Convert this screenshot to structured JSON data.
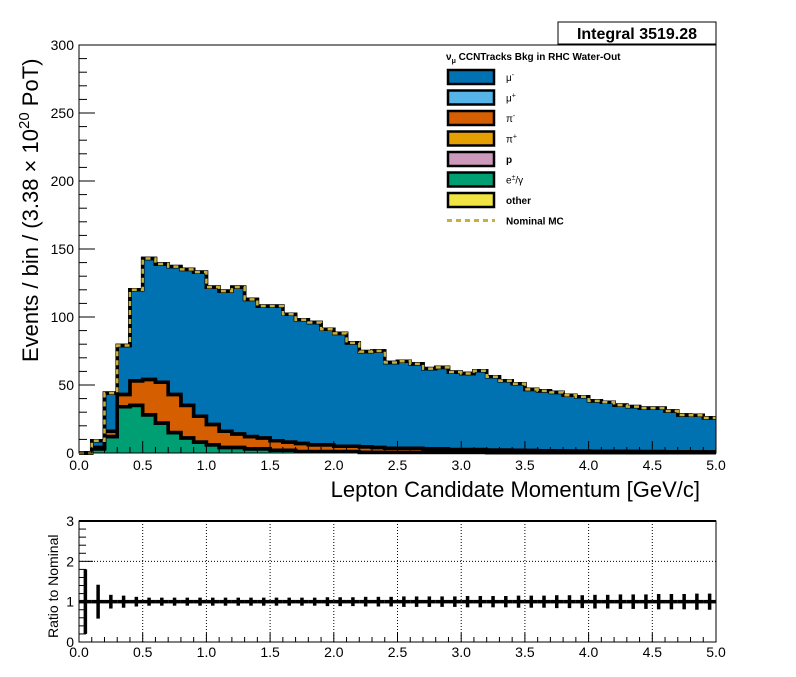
{
  "stats_box": {
    "label": "Integral 3519.28"
  },
  "chart_data": [
    {
      "type": "area",
      "title": "ν_μ CCNTracks Bkg in RHC Water-Out",
      "xlabel": "Lepton Candidate Momentum [GeV/c]",
      "ylabel": "Events / bin / (3.38  × 10^20  PoT)",
      "ylabel_parts": {
        "main": "Events / bin / (3.38  × 10",
        "exp": "20",
        "tail": "  PoT)"
      },
      "xlim": [
        0,
        5
      ],
      "ylim": [
        0,
        300
      ],
      "xticks": [
        "0.0",
        "0.5",
        "1.0",
        "1.5",
        "2.0",
        "2.5",
        "3.0",
        "3.5",
        "4.0",
        "4.5",
        "5.0"
      ],
      "yticks": [
        "0",
        "50",
        "100",
        "150",
        "200",
        "250",
        "300"
      ],
      "bin_width": 0.1,
      "stacked": true,
      "legend_position": "top-right",
      "series": [
        {
          "name": "e±/γ",
          "color": "#009e73",
          "values": [
            0,
            3,
            12,
            34,
            35,
            28,
            22,
            15,
            11,
            8,
            6,
            4,
            4,
            3,
            3,
            2,
            2,
            1,
            1,
            1,
            1,
            1,
            0.5,
            0.5,
            0.5,
            0.5,
            0.5,
            0.5,
            0.5,
            0.5,
            0.5,
            0.5,
            0.3,
            0.3,
            0.3,
            0.3,
            0.3,
            0.3,
            0.3,
            0.3,
            0.3,
            0.3,
            0.3,
            0.2,
            0.2,
            0.2,
            0.2,
            0.2,
            0.2,
            0.2
          ]
        },
        {
          "name": "π+",
          "color": "#e69f00",
          "values": [
            0,
            0,
            0,
            0,
            0,
            0,
            0,
            0,
            0,
            0,
            0,
            0,
            0,
            0,
            0,
            0,
            0,
            0,
            0,
            0,
            0,
            0,
            0,
            0,
            0,
            0,
            0,
            0,
            0,
            0,
            0,
            0,
            0,
            0,
            0,
            0,
            0,
            0,
            0,
            0,
            0,
            0,
            0,
            0,
            0,
            0,
            0,
            0,
            0,
            0
          ]
        },
        {
          "name": "π-",
          "color": "#d55e00",
          "values": [
            0,
            1,
            4,
            9,
            18,
            26,
            30,
            28,
            24,
            19,
            15,
            12,
            10,
            9,
            8,
            7,
            6,
            6,
            5,
            5,
            4,
            4,
            4,
            3.5,
            3,
            3,
            3,
            2.5,
            2.5,
            2,
            2,
            2,
            1.8,
            1.8,
            1.6,
            1.5,
            1.4,
            1.3,
            1.2,
            1.1,
            1,
            1,
            0.9,
            0.9,
            0.8,
            0.8,
            0.7,
            0.7,
            0.6,
            0.6
          ]
        },
        {
          "name": "μ+",
          "color": "#56b4e9",
          "values": [
            0,
            0,
            0,
            0,
            0,
            0,
            0,
            0,
            0,
            0,
            0,
            0,
            0,
            0,
            0,
            0,
            0,
            0,
            0,
            0,
            0,
            0,
            0,
            0,
            0,
            0,
            0,
            0,
            0,
            0,
            0,
            0,
            0,
            0,
            0,
            0,
            0,
            0,
            0,
            0,
            0,
            0,
            0,
            0,
            0,
            0,
            0,
            0,
            0,
            0
          ]
        },
        {
          "name": "μ-",
          "color": "#0072b2",
          "values": [
            0,
            5,
            28,
            36,
            67,
            89,
            87,
            94,
            100,
            106,
            101,
            103,
            108,
            101,
            97,
            99,
            94,
            91,
            90,
            85,
            83,
            76,
            70,
            71,
            63,
            64,
            62,
            59,
            60,
            57,
            56,
            58,
            54,
            51,
            49,
            45,
            44,
            43,
            41,
            40,
            37,
            36,
            34,
            33,
            32,
            32,
            30,
            27,
            27,
            25
          ]
        },
        {
          "name": "p",
          "color": "#cc99bb",
          "values": [
            0,
            0,
            0,
            0,
            0,
            0,
            0,
            0,
            0,
            0,
            0,
            0,
            0,
            0,
            0,
            0,
            0,
            0,
            0,
            0,
            0,
            0,
            0,
            0,
            0,
            0,
            0,
            0,
            0,
            0,
            0,
            0,
            0,
            0,
            0,
            0,
            0,
            0,
            0,
            0,
            0,
            0,
            0,
            0,
            0,
            0,
            0,
            0,
            0,
            0
          ]
        },
        {
          "name": "other",
          "color": "#f0e442",
          "values": [
            0,
            0,
            0,
            0,
            0,
            0,
            0,
            0,
            0,
            0,
            0,
            0,
            0,
            0,
            0,
            0,
            0,
            0,
            0,
            0,
            0,
            0,
            0,
            0,
            0,
            0,
            0,
            0,
            0,
            0,
            0,
            0,
            0,
            0,
            0,
            0,
            0,
            0,
            0,
            0,
            0,
            0,
            0,
            0,
            0,
            0,
            0,
            0,
            0,
            0
          ]
        }
      ],
      "legend": [
        {
          "label": "μ-",
          "base": "μ",
          "sup": "-",
          "color": "#0072b2"
        },
        {
          "label": "μ+",
          "base": "μ",
          "sup": "+",
          "color": "#56b4e9"
        },
        {
          "label": "π-",
          "base": "π",
          "sup": "-",
          "color": "#d55e00"
        },
        {
          "label": "π+",
          "base": "π",
          "sup": "+",
          "color": "#e69f00"
        },
        {
          "label": "p",
          "base": "p",
          "sup": "",
          "color": "#cc99bb"
        },
        {
          "label": "e±/γ",
          "base": "e",
          "sup": "±",
          "tail": "/γ",
          "color": "#009e73"
        },
        {
          "label": "other",
          "base": "other",
          "sup": "",
          "color": "#f0e442"
        },
        {
          "label": "Nominal MC",
          "base": "Nominal MC",
          "sup": "",
          "color": "#c8b040",
          "dashed": true
        }
      ]
    },
    {
      "type": "scatter",
      "ylabel": "Ratio to Nominal",
      "xlim": [
        0,
        5
      ],
      "ylim": [
        0,
        3
      ],
      "xticks": [
        "0.0",
        "0.5",
        "1.0",
        "1.5",
        "2.0",
        "2.5",
        "3.0",
        "3.5",
        "4.0",
        "4.5",
        "5.0"
      ],
      "yticks": [
        "0",
        "1",
        "2",
        "3"
      ],
      "grid": true,
      "x": [
        0.05,
        0.15,
        0.25,
        0.35,
        0.45,
        0.55,
        0.65,
        0.75,
        0.85,
        0.95,
        1.05,
        1.15,
        1.25,
        1.35,
        1.45,
        1.55,
        1.65,
        1.75,
        1.85,
        1.95,
        2.05,
        2.15,
        2.25,
        2.35,
        2.45,
        2.55,
        2.65,
        2.75,
        2.85,
        2.95,
        3.05,
        3.15,
        3.25,
        3.35,
        3.45,
        3.55,
        3.65,
        3.75,
        3.85,
        3.95,
        4.05,
        4.15,
        4.25,
        4.35,
        4.45,
        4.55,
        4.65,
        4.75,
        4.85,
        4.95
      ],
      "y": [
        1,
        1,
        1,
        1,
        1,
        1,
        1,
        1,
        1,
        1,
        1,
        1,
        1,
        1,
        1,
        1,
        1,
        1,
        1,
        1,
        1,
        1,
        1,
        1,
        1,
        1,
        1,
        1,
        1,
        1,
        1,
        1,
        1,
        1,
        1,
        1,
        1,
        1,
        1,
        1,
        1,
        1,
        1,
        1,
        1,
        1,
        1,
        1,
        1,
        1
      ],
      "yerr": [
        0.8,
        0.42,
        0.17,
        0.15,
        0.12,
        0.1,
        0.1,
        0.1,
        0.1,
        0.1,
        0.1,
        0.1,
        0.1,
        0.1,
        0.1,
        0.1,
        0.1,
        0.1,
        0.1,
        0.11,
        0.11,
        0.11,
        0.12,
        0.12,
        0.12,
        0.13,
        0.13,
        0.13,
        0.13,
        0.13,
        0.14,
        0.14,
        0.14,
        0.14,
        0.15,
        0.15,
        0.15,
        0.16,
        0.16,
        0.16,
        0.17,
        0.17,
        0.18,
        0.18,
        0.18,
        0.19,
        0.19,
        0.19,
        0.2,
        0.2
      ]
    }
  ]
}
